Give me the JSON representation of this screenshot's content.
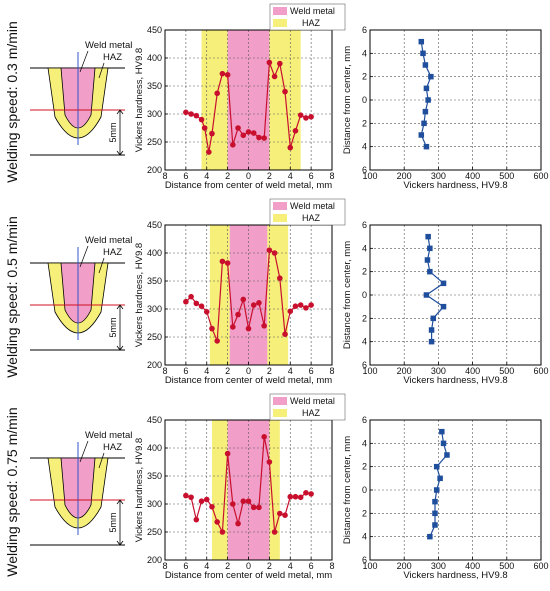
{
  "chart_data": [
    {
      "panel": "row1",
      "speed_label": "Welding speed: 0.3 m/min",
      "diagram": {
        "weld_label": "Weld metal",
        "haz_label": "HAZ",
        "dim_label": "5mm"
      },
      "profile": {
        "type": "line",
        "xlabel": "Distance from center of weld metal, mm",
        "ylabel": "Vickers hardness, HV9.8",
        "xlim": [
          8,
          -8
        ],
        "ylim": [
          200,
          450
        ],
        "xticks": [
          "8",
          "6",
          "4",
          "2",
          "0",
          "2",
          "4",
          "6",
          "8"
        ],
        "yticks": [
          "200",
          "250",
          "300",
          "350",
          "400",
          "450"
        ],
        "legend": [
          "Weld metal",
          "HAZ"
        ],
        "weld_zone": [
          -2,
          2
        ],
        "haz_zones": [
          [
            -5,
            -2
          ],
          [
            2,
            4.5
          ]
        ],
        "x": [
          6,
          5.5,
          5,
          4.5,
          4.2,
          3.8,
          3.5,
          3,
          2.5,
          2,
          1.5,
          1,
          0.5,
          0,
          -0.5,
          -1,
          -1.5,
          -2,
          -2.5,
          -3,
          -3.5,
          -4,
          -4.5,
          -5,
          -5.5,
          -6
        ],
        "y": [
          303,
          300,
          297,
          290,
          275,
          232,
          265,
          337,
          372,
          370,
          245,
          275,
          262,
          268,
          266,
          258,
          257,
          392,
          367,
          390,
          340,
          240,
          270,
          298,
          293,
          295
        ]
      },
      "depth": {
        "type": "line",
        "xlabel": "Vickers hardness, HV9.8",
        "ylabel": "Distance from center, mm",
        "xlim": [
          100,
          600
        ],
        "ylim": [
          -6,
          6
        ],
        "xticks": [
          "100",
          "200",
          "300",
          "400",
          "500",
          "600"
        ],
        "yticks": [
          "6",
          "4",
          "2",
          "0",
          "2",
          "4",
          "6"
        ],
        "x": [
          250,
          255,
          262,
          278,
          265,
          270,
          262,
          258,
          250,
          265
        ],
        "y": [
          5,
          4,
          3,
          2,
          1,
          0,
          -1,
          -2,
          -3,
          -4
        ]
      }
    },
    {
      "panel": "row2",
      "speed_label": "Welding speed: 0.5 m/min",
      "diagram": {
        "weld_label": "Weld metal",
        "haz_label": "HAZ",
        "dim_label": "5mm"
      },
      "profile": {
        "type": "line",
        "xlabel": "Distance from center of weld metal, mm",
        "ylabel": "Vickers hardness, HV9.8",
        "xlim": [
          8,
          -8
        ],
        "ylim": [
          200,
          450
        ],
        "xticks": [
          "8",
          "6",
          "4",
          "2",
          "0",
          "2",
          "4",
          "6",
          "8"
        ],
        "yticks": [
          "200",
          "250",
          "300",
          "350",
          "400",
          "450"
        ],
        "legend": [
          "Weld metal",
          "HAZ"
        ],
        "weld_zone": [
          -1.8,
          1.8
        ],
        "haz_zones": [
          [
            -3.8,
            -1.8
          ],
          [
            1.8,
            3.7
          ]
        ],
        "x": [
          6,
          5.5,
          5,
          4.5,
          4,
          3.5,
          3,
          2.5,
          2,
          1.5,
          1,
          0.5,
          0,
          -0.5,
          -1,
          -1.5,
          -2,
          -2.5,
          -3,
          -3.5,
          -4,
          -4.5,
          -5,
          -5.5,
          -6
        ],
        "y": [
          313,
          322,
          310,
          305,
          295,
          265,
          243,
          385,
          382,
          268,
          290,
          317,
          265,
          307,
          311,
          270,
          405,
          400,
          355,
          255,
          296,
          305,
          307,
          302,
          307
        ]
      },
      "depth": {
        "type": "line",
        "xlabel": "Vickers hardness, HV9.8",
        "ylabel": "Distance from center, mm",
        "xlim": [
          100,
          600
        ],
        "ylim": [
          -6,
          6
        ],
        "xticks": [
          "100",
          "200",
          "300",
          "400",
          "500",
          "600"
        ],
        "yticks": [
          "6",
          "4",
          "2",
          "0",
          "2",
          "4",
          "6"
        ],
        "x": [
          270,
          275,
          268,
          275,
          315,
          265,
          315,
          285,
          280,
          280
        ],
        "y": [
          5,
          4,
          3,
          2,
          1,
          0,
          -1,
          -2,
          -3,
          -4
        ]
      }
    },
    {
      "panel": "row3",
      "speed_label": "Welding speed: 0.75 m/min",
      "diagram": {
        "weld_label": "Weld metal",
        "haz_label": "HAZ",
        "dim_label": "5mm"
      },
      "profile": {
        "type": "line",
        "xlabel": "Distance from center of weld metal, mm",
        "ylabel": "Vickers hardness, HV9.8",
        "xlim": [
          8,
          -8
        ],
        "ylim": [
          200,
          450
        ],
        "xticks": [
          "8",
          "6",
          "4",
          "2",
          "0",
          "2",
          "4",
          "6",
          "8"
        ],
        "yticks": [
          "200",
          "250",
          "300",
          "350",
          "400",
          "450"
        ],
        "legend": [
          "Weld metal",
          "HAZ"
        ],
        "weld_zone": [
          -2,
          2
        ],
        "haz_zones": [
          [
            -3,
            -2
          ],
          [
            2,
            3.5
          ]
        ],
        "x": [
          6,
          5.5,
          5,
          4.5,
          4,
          3.5,
          3,
          2.5,
          2,
          1.5,
          1,
          0.5,
          0,
          -0.5,
          -1,
          -1.5,
          -2,
          -2.5,
          -3,
          -3.5,
          -4,
          -4.5,
          -5,
          -5.5,
          -6
        ],
        "y": [
          315,
          312,
          272,
          305,
          308,
          295,
          268,
          250,
          390,
          300,
          265,
          305,
          305,
          294,
          294,
          420,
          375,
          250,
          283,
          280,
          313,
          313,
          312,
          320,
          318
        ]
      },
      "depth": {
        "type": "line",
        "xlabel": "Vickers hardness, HV9.8",
        "ylabel": "Distance from center, mm",
        "xlim": [
          100,
          600
        ],
        "ylim": [
          -6,
          6
        ],
        "xticks": [
          "100",
          "200",
          "300",
          "400",
          "500",
          "600"
        ],
        "yticks": [
          "6",
          "4",
          "2",
          "0",
          "2",
          "4",
          "6"
        ],
        "x": [
          310,
          315,
          325,
          295,
          305,
          295,
          290,
          290,
          290,
          275
        ],
        "y": [
          5,
          4,
          3,
          2,
          1,
          0,
          -1,
          -2,
          -3,
          -4
        ]
      }
    }
  ],
  "colors": {
    "weld": "#f19ec8",
    "haz": "#f6f07a",
    "profile_line": "#c8102e",
    "depth_line": "#1f4e9c",
    "center_line": "#3355cc",
    "cross_line": "#d01020"
  }
}
